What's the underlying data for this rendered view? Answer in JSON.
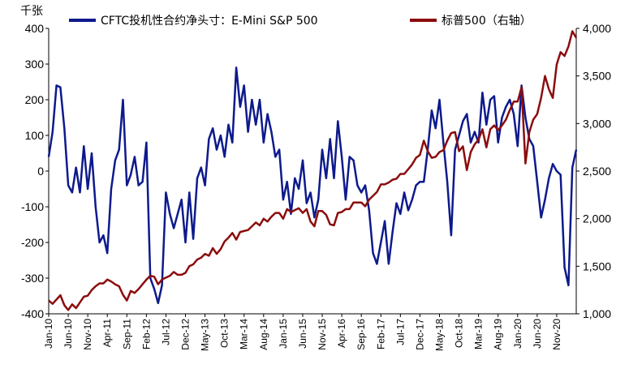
{
  "chart_data": {
    "type": "line",
    "unit_left": "千张",
    "legend_position": "top",
    "grid": false,
    "x_tick_labels": [
      "Jan-10",
      "Jun-10",
      "Nov-10",
      "Apr-11",
      "Sep-11",
      "Feb-12",
      "Jul-12",
      "Dec-12",
      "May-13",
      "Oct-13",
      "Mar-14",
      "Aug-14",
      "Jan-15",
      "Jun-15",
      "Nov-15",
      "Apr-16",
      "Sep-16",
      "Feb-17",
      "Jul-17",
      "Dec-17",
      "May-18",
      "Oct-18",
      "Mar-19",
      "Aug-19",
      "Jan-20",
      "Jun-20",
      "Nov-20"
    ],
    "x_range": [
      "2010-01",
      "2021-04"
    ],
    "y_left": {
      "range": [
        -400,
        400
      ],
      "ticks": [
        "400",
        "300",
        "200",
        "100",
        "0",
        "-100",
        "-200",
        "-300",
        "-400"
      ]
    },
    "y_right": {
      "range": [
        1000,
        4000
      ],
      "ticks": [
        "4,000",
        "3,500",
        "3,000",
        "2,500",
        "2,000",
        "1,500",
        "1,000"
      ]
    },
    "series": [
      {
        "name": "CFTC投机性合约净头寸：E-Mini S&P 500",
        "axis": "left",
        "color": "#0d1a8c",
        "points": [
          [
            "2010-01",
            40
          ],
          [
            "2010-02",
            110
          ],
          [
            "2010-03",
            240
          ],
          [
            "2010-04",
            235
          ],
          [
            "2010-05",
            120
          ],
          [
            "2010-06",
            -40
          ],
          [
            "2010-07",
            -60
          ],
          [
            "2010-08",
            10
          ],
          [
            "2010-09",
            -60
          ],
          [
            "2010-10",
            70
          ],
          [
            "2010-11",
            -50
          ],
          [
            "2010-12",
            50
          ],
          [
            "2011-01",
            -100
          ],
          [
            "2011-02",
            -200
          ],
          [
            "2011-03",
            -180
          ],
          [
            "2011-04",
            -230
          ],
          [
            "2011-05",
            -50
          ],
          [
            "2011-06",
            30
          ],
          [
            "2011-07",
            60
          ],
          [
            "2011-08",
            200
          ],
          [
            "2011-09",
            -40
          ],
          [
            "2011-10",
            -10
          ],
          [
            "2011-11",
            40
          ],
          [
            "2011-12",
            -40
          ],
          [
            "2012-01",
            -30
          ],
          [
            "2012-02",
            80
          ],
          [
            "2012-03",
            -300
          ],
          [
            "2012-04",
            -330
          ],
          [
            "2012-05",
            -370
          ],
          [
            "2012-06",
            -320
          ],
          [
            "2012-07",
            -60
          ],
          [
            "2012-08",
            -120
          ],
          [
            "2012-09",
            -160
          ],
          [
            "2012-10",
            -120
          ],
          [
            "2012-11",
            -80
          ],
          [
            "2012-12",
            -200
          ],
          [
            "2013-01",
            -60
          ],
          [
            "2013-02",
            -190
          ],
          [
            "2013-03",
            -20
          ],
          [
            "2013-04",
            10
          ],
          [
            "2013-05",
            -40
          ],
          [
            "2013-06",
            90
          ],
          [
            "2013-07",
            120
          ],
          [
            "2013-08",
            60
          ],
          [
            "2013-09",
            100
          ],
          [
            "2013-10",
            40
          ],
          [
            "2013-11",
            130
          ],
          [
            "2013-12",
            80
          ],
          [
            "2014-01",
            290
          ],
          [
            "2014-02",
            180
          ],
          [
            "2014-03",
            240
          ],
          [
            "2014-04",
            110
          ],
          [
            "2014-05",
            200
          ],
          [
            "2014-06",
            130
          ],
          [
            "2014-07",
            200
          ],
          [
            "2014-08",
            80
          ],
          [
            "2014-09",
            160
          ],
          [
            "2014-10",
            110
          ],
          [
            "2014-11",
            40
          ],
          [
            "2014-12",
            60
          ],
          [
            "2015-01",
            -80
          ],
          [
            "2015-02",
            -30
          ],
          [
            "2015-03",
            -120
          ],
          [
            "2015-04",
            -20
          ],
          [
            "2015-05",
            -50
          ],
          [
            "2015-06",
            30
          ],
          [
            "2015-07",
            -90
          ],
          [
            "2015-08",
            -60
          ],
          [
            "2015-09",
            -130
          ],
          [
            "2015-10",
            -80
          ],
          [
            "2015-11",
            60
          ],
          [
            "2015-12",
            -20
          ],
          [
            "2016-01",
            90
          ],
          [
            "2016-02",
            -20
          ],
          [
            "2016-03",
            140
          ],
          [
            "2016-04",
            40
          ],
          [
            "2016-05",
            -80
          ],
          [
            "2016-06",
            40
          ],
          [
            "2016-07",
            30
          ],
          [
            "2016-08",
            -40
          ],
          [
            "2016-09",
            -60
          ],
          [
            "2016-10",
            -40
          ],
          [
            "2016-11",
            -110
          ],
          [
            "2016-12",
            -230
          ],
          [
            "2017-01",
            -260
          ],
          [
            "2017-02",
            -200
          ],
          [
            "2017-03",
            -140
          ],
          [
            "2017-04",
            -260
          ],
          [
            "2017-05",
            -170
          ],
          [
            "2017-06",
            -90
          ],
          [
            "2017-07",
            -120
          ],
          [
            "2017-08",
            -60
          ],
          [
            "2017-09",
            -110
          ],
          [
            "2017-10",
            -80
          ],
          [
            "2017-11",
            -40
          ],
          [
            "2017-12",
            -30
          ],
          [
            "2018-01",
            -30
          ],
          [
            "2018-02",
            60
          ],
          [
            "2018-03",
            170
          ],
          [
            "2018-04",
            120
          ],
          [
            "2018-05",
            200
          ],
          [
            "2018-06",
            80
          ],
          [
            "2018-07",
            -30
          ],
          [
            "2018-08",
            -180
          ],
          [
            "2018-09",
            60
          ],
          [
            "2018-10",
            100
          ],
          [
            "2018-11",
            140
          ],
          [
            "2018-12",
            160
          ],
          [
            "2019-01",
            80
          ],
          [
            "2019-02",
            110
          ],
          [
            "2019-03",
            80
          ],
          [
            "2019-04",
            220
          ],
          [
            "2019-05",
            130
          ],
          [
            "2019-06",
            200
          ],
          [
            "2019-07",
            210
          ],
          [
            "2019-08",
            80
          ],
          [
            "2019-09",
            150
          ],
          [
            "2019-10",
            180
          ],
          [
            "2019-11",
            200
          ],
          [
            "2019-12",
            160
          ],
          [
            "2020-01",
            70
          ],
          [
            "2020-02",
            240
          ],
          [
            "2020-03",
            150
          ],
          [
            "2020-04",
            90
          ],
          [
            "2020-05",
            70
          ],
          [
            "2020-06",
            -30
          ],
          [
            "2020-07",
            -130
          ],
          [
            "2020-08",
            -80
          ],
          [
            "2020-09",
            -20
          ],
          [
            "2020-10",
            20
          ],
          [
            "2020-11",
            0
          ],
          [
            "2020-12",
            -10
          ],
          [
            "2021-01",
            -270
          ],
          [
            "2021-02",
            -320
          ],
          [
            "2021-03",
            10
          ],
          [
            "2021-04",
            60
          ]
        ]
      },
      {
        "name": "标普500（右轴）",
        "axis": "right",
        "color": "#8b0d0d",
        "points": [
          [
            "2010-01",
            1140
          ],
          [
            "2010-02",
            1105
          ],
          [
            "2010-03",
            1150
          ],
          [
            "2010-04",
            1195
          ],
          [
            "2010-05",
            1090
          ],
          [
            "2010-06",
            1040
          ],
          [
            "2010-07",
            1100
          ],
          [
            "2010-08",
            1060
          ],
          [
            "2010-09",
            1120
          ],
          [
            "2010-10",
            1180
          ],
          [
            "2010-11",
            1190
          ],
          [
            "2010-12",
            1250
          ],
          [
            "2011-01",
            1290
          ],
          [
            "2011-02",
            1320
          ],
          [
            "2011-03",
            1320
          ],
          [
            "2011-04",
            1360
          ],
          [
            "2011-05",
            1340
          ],
          [
            "2011-06",
            1310
          ],
          [
            "2011-07",
            1290
          ],
          [
            "2011-08",
            1200
          ],
          [
            "2011-09",
            1140
          ],
          [
            "2011-10",
            1240
          ],
          [
            "2011-11",
            1220
          ],
          [
            "2011-12",
            1260
          ],
          [
            "2012-01",
            1310
          ],
          [
            "2012-02",
            1360
          ],
          [
            "2012-03",
            1400
          ],
          [
            "2012-04",
            1390
          ],
          [
            "2012-05",
            1310
          ],
          [
            "2012-06",
            1360
          ],
          [
            "2012-07",
            1380
          ],
          [
            "2012-08",
            1400
          ],
          [
            "2012-09",
            1440
          ],
          [
            "2012-10",
            1410
          ],
          [
            "2012-11",
            1410
          ],
          [
            "2012-12",
            1430
          ],
          [
            "2013-01",
            1500
          ],
          [
            "2013-02",
            1520
          ],
          [
            "2013-03",
            1570
          ],
          [
            "2013-04",
            1590
          ],
          [
            "2013-05",
            1630
          ],
          [
            "2013-06",
            1610
          ],
          [
            "2013-07",
            1690
          ],
          [
            "2013-08",
            1630
          ],
          [
            "2013-09",
            1680
          ],
          [
            "2013-10",
            1760
          ],
          [
            "2013-11",
            1800
          ],
          [
            "2013-12",
            1850
          ],
          [
            "2014-01",
            1780
          ],
          [
            "2014-02",
            1860
          ],
          [
            "2014-03",
            1870
          ],
          [
            "2014-04",
            1880
          ],
          [
            "2014-05",
            1920
          ],
          [
            "2014-06",
            1960
          ],
          [
            "2014-07",
            1930
          ],
          [
            "2014-08",
            2000
          ],
          [
            "2014-09",
            1970
          ],
          [
            "2014-10",
            2020
          ],
          [
            "2014-11",
            2060
          ],
          [
            "2014-12",
            2060
          ],
          [
            "2015-01",
            2000
          ],
          [
            "2015-02",
            2100
          ],
          [
            "2015-03",
            2070
          ],
          [
            "2015-04",
            2090
          ],
          [
            "2015-05",
            2110
          ],
          [
            "2015-06",
            2060
          ],
          [
            "2015-07",
            2100
          ],
          [
            "2015-08",
            1970
          ],
          [
            "2015-09",
            1920
          ],
          [
            "2015-10",
            2080
          ],
          [
            "2015-11",
            2080
          ],
          [
            "2015-12",
            2040
          ],
          [
            "2016-01",
            1940
          ],
          [
            "2016-02",
            1930
          ],
          [
            "2016-03",
            2060
          ],
          [
            "2016-04",
            2070
          ],
          [
            "2016-05",
            2100
          ],
          [
            "2016-06",
            2100
          ],
          [
            "2016-07",
            2170
          ],
          [
            "2016-08",
            2170
          ],
          [
            "2016-09",
            2170
          ],
          [
            "2016-10",
            2130
          ],
          [
            "2016-11",
            2200
          ],
          [
            "2016-12",
            2240
          ],
          [
            "2017-01",
            2280
          ],
          [
            "2017-02",
            2360
          ],
          [
            "2017-03",
            2360
          ],
          [
            "2017-04",
            2380
          ],
          [
            "2017-05",
            2410
          ],
          [
            "2017-06",
            2420
          ],
          [
            "2017-07",
            2470
          ],
          [
            "2017-08",
            2470
          ],
          [
            "2017-09",
            2520
          ],
          [
            "2017-10",
            2570
          ],
          [
            "2017-11",
            2640
          ],
          [
            "2017-12",
            2670
          ],
          [
            "2018-01",
            2820
          ],
          [
            "2018-02",
            2710
          ],
          [
            "2018-03",
            2640
          ],
          [
            "2018-04",
            2650
          ],
          [
            "2018-05",
            2700
          ],
          [
            "2018-06",
            2720
          ],
          [
            "2018-07",
            2820
          ],
          [
            "2018-08",
            2900
          ],
          [
            "2018-09",
            2910
          ],
          [
            "2018-10",
            2710
          ],
          [
            "2018-11",
            2760
          ],
          [
            "2018-12",
            2510
          ],
          [
            "2019-01",
            2700
          ],
          [
            "2019-02",
            2780
          ],
          [
            "2019-03",
            2830
          ],
          [
            "2019-04",
            2940
          ],
          [
            "2019-05",
            2750
          ],
          [
            "2019-06",
            2940
          ],
          [
            "2019-07",
            2980
          ],
          [
            "2019-08",
            2930
          ],
          [
            "2019-09",
            2980
          ],
          [
            "2019-10",
            3040
          ],
          [
            "2019-11",
            3140
          ],
          [
            "2019-12",
            3230
          ],
          [
            "2020-01",
            3230
          ],
          [
            "2020-02",
            3380
          ],
          [
            "2020-03",
            2580
          ],
          [
            "2020-04",
            2910
          ],
          [
            "2020-05",
            3040
          ],
          [
            "2020-06",
            3100
          ],
          [
            "2020-07",
            3270
          ],
          [
            "2020-08",
            3500
          ],
          [
            "2020-09",
            3360
          ],
          [
            "2020-10",
            3270
          ],
          [
            "2020-11",
            3620
          ],
          [
            "2020-12",
            3750
          ],
          [
            "2021-01",
            3710
          ],
          [
            "2021-02",
            3810
          ],
          [
            "2021-03",
            3970
          ],
          [
            "2021-04",
            3900
          ]
        ]
      }
    ]
  }
}
